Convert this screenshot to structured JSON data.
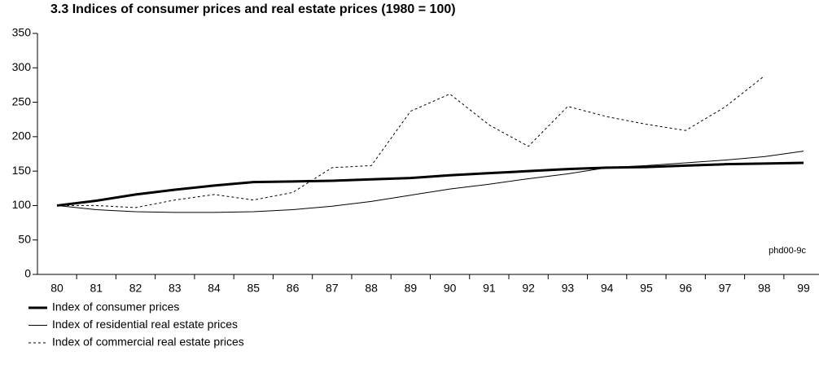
{
  "chart_data": {
    "type": "line",
    "title": "3.3 Indices of consumer prices and real estate prices (1980 = 100)",
    "annotation": "phd00-9c",
    "categories": [
      "80",
      "81",
      "82",
      "83",
      "84",
      "85",
      "86",
      "87",
      "88",
      "89",
      "90",
      "91",
      "92",
      "93",
      "94",
      "95",
      "96",
      "97",
      "98",
      "99"
    ],
    "series": [
      {
        "name": "Index of consumer prices",
        "color": "#000000",
        "style": "thick",
        "values": [
          100,
          107,
          116,
          123,
          129,
          134,
          135,
          136,
          138,
          140,
          144,
          147,
          150,
          153,
          155,
          156,
          158,
          160,
          161,
          162
        ]
      },
      {
        "name": "Index of residential real estate prices",
        "color": "#000000",
        "style": "thin",
        "values": [
          100,
          94,
          91,
          90,
          90,
          91,
          94,
          99,
          106,
          115,
          124,
          131,
          139,
          146,
          155,
          158,
          162,
          166,
          171,
          179
        ]
      },
      {
        "name": "Index of commercial real estate prices",
        "color": "#000000",
        "style": "dotted",
        "values": [
          100,
          100,
          97,
          108,
          116,
          108,
          119,
          155,
          158,
          237,
          262,
          217,
          186,
          244,
          229,
          218,
          209,
          243,
          288,
          null
        ]
      }
    ],
    "ylim": [
      0,
      350
    ],
    "yticks": [
      0,
      50,
      100,
      150,
      200,
      250,
      300,
      350
    ],
    "grid": false
  }
}
